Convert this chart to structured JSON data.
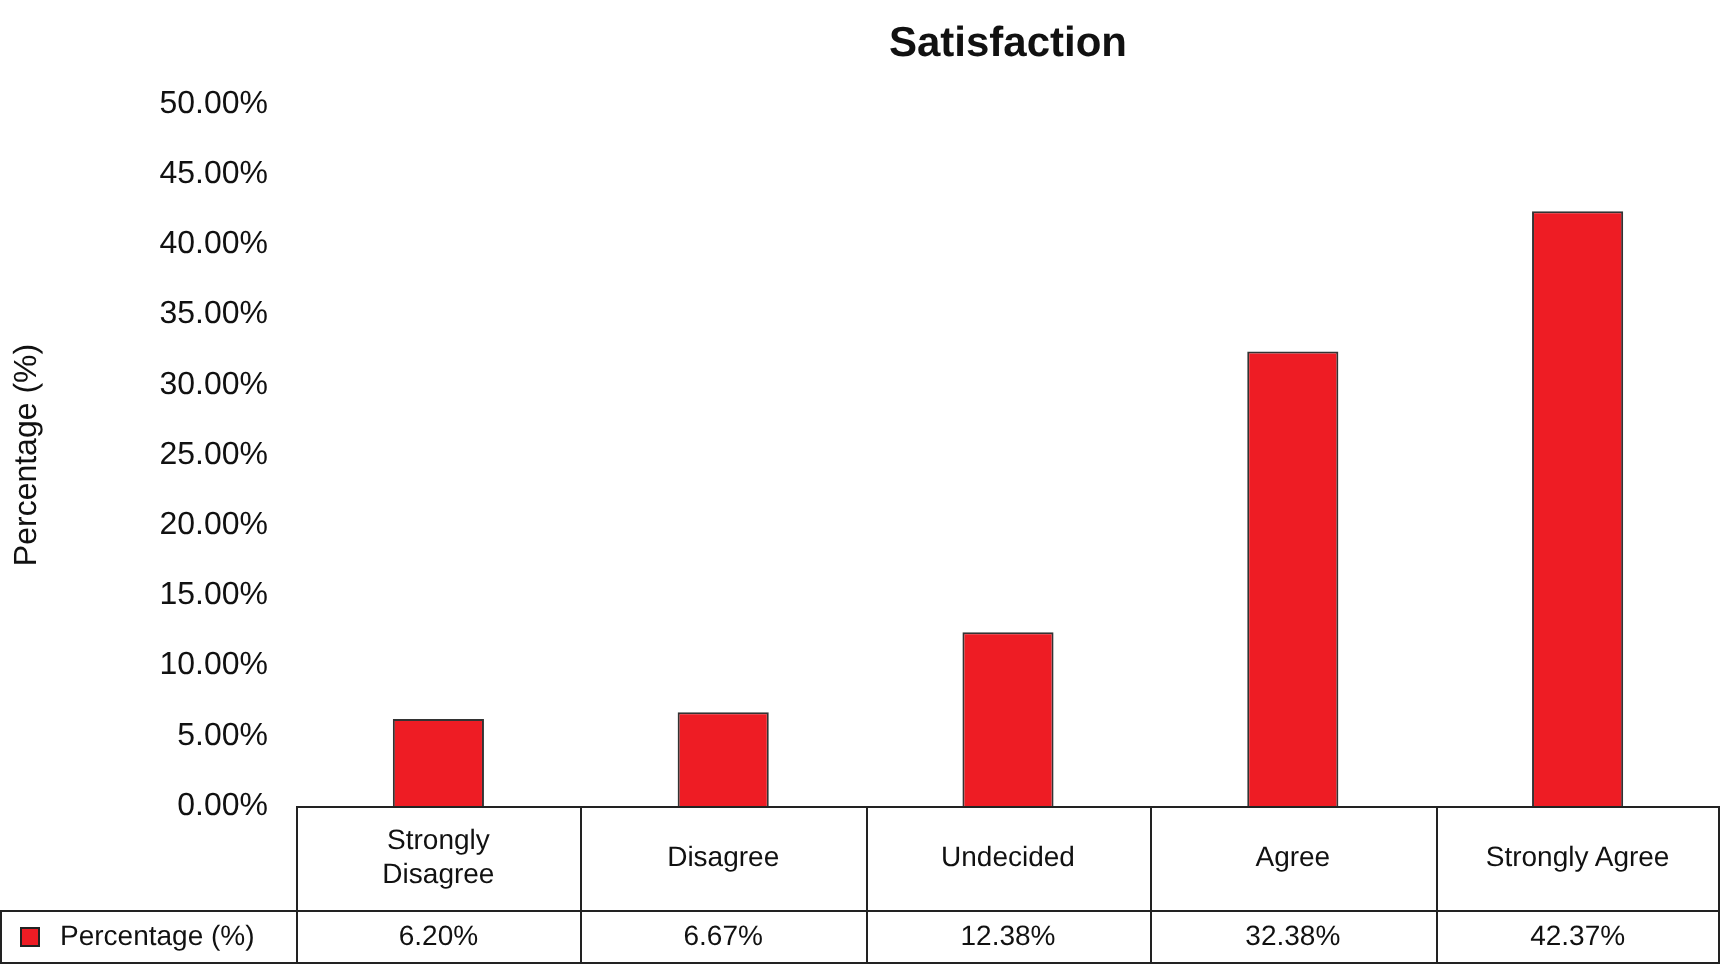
{
  "chart_data": {
    "type": "bar",
    "title": "Satisfaction",
    "ylabel": "Percentage (%)",
    "categories": [
      "Strongly Disagree",
      "Disagree",
      "Undecided",
      "Agree",
      "Strongly Agree"
    ],
    "series": [
      {
        "name": "Percentage (%)",
        "color": "#ee1c24",
        "values": [
          6.2,
          6.67,
          12.38,
          32.38,
          42.37
        ],
        "value_labels": [
          "6.20%",
          "6.67%",
          "12.38%",
          "32.38%",
          "42.37%"
        ]
      }
    ],
    "ylim": [
      0,
      50
    ],
    "yticks": [
      {
        "value": 0,
        "label": "0.00%"
      },
      {
        "value": 5,
        "label": "5.00%"
      },
      {
        "value": 10,
        "label": "10.00%"
      },
      {
        "value": 15,
        "label": "15.00%"
      },
      {
        "value": 20,
        "label": "20.00%"
      },
      {
        "value": 25,
        "label": "25.00%"
      },
      {
        "value": 30,
        "label": "30.00%"
      },
      {
        "value": 35,
        "label": "35.00%"
      },
      {
        "value": 40,
        "label": "40.00%"
      },
      {
        "value": 45,
        "label": "45.00%"
      },
      {
        "value": 50,
        "label": "50.00%"
      }
    ],
    "grid": false,
    "legend": "bottom"
  }
}
